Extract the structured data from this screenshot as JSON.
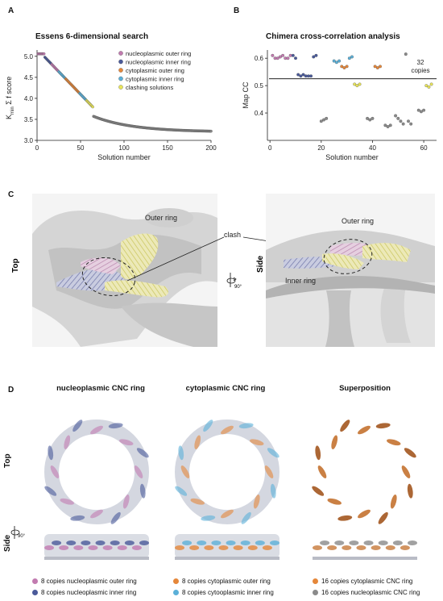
{
  "panel_a": {
    "letter": "A",
    "chart_data": {
      "type": "scatter",
      "title": "Essens 6-dimensional search",
      "xlabel": "Solution number",
      "ylabel_main": "K",
      "ylabel_sub": "min",
      "ylabel_rest": " Σ f score",
      "xlim": [
        0,
        200
      ],
      "ylim": [
        3.0,
        5.15
      ],
      "xticks": [
        0,
        50,
        100,
        150,
        200
      ],
      "yticks": [
        3.0,
        3.5,
        4.0,
        4.5,
        5.0
      ],
      "legend": [
        {
          "name": "nucleoplasmic outer ring",
          "color": "#c27bb0"
        },
        {
          "name": "nucleoplasmic inner ring",
          "color": "#4a5a9a"
        },
        {
          "name": "cytoplasmic outer ring",
          "color": "#e5873a"
        },
        {
          "name": "cytoplasmic inner ring",
          "color": "#5bb0d8"
        },
        {
          "name": "clashing solutions",
          "color": "#e8e45a"
        }
      ],
      "colors": {
        "other": "#8a8a8a"
      }
    }
  },
  "panel_b": {
    "letter": "B",
    "chart_data": {
      "type": "scatter",
      "title": "Chimera cross-correlation analysis",
      "xlabel": "Solution number",
      "ylabel": "Map CC",
      "xlim": [
        -1,
        65
      ],
      "ylim": [
        0.3,
        0.63
      ],
      "xticks": [
        0,
        20,
        40,
        60
      ],
      "yticks": [
        0.4,
        0.5,
        0.6
      ],
      "threshold": 0.525,
      "annotation_line1": "32",
      "annotation_line2": "copies",
      "points": [
        {
          "x": 1,
          "y": 0.61,
          "c": "#c27bb0"
        },
        {
          "x": 2,
          "y": 0.6,
          "c": "#c27bb0"
        },
        {
          "x": 3,
          "y": 0.6,
          "c": "#c27bb0"
        },
        {
          "x": 4,
          "y": 0.605,
          "c": "#c27bb0"
        },
        {
          "x": 5,
          "y": 0.61,
          "c": "#c27bb0"
        },
        {
          "x": 6,
          "y": 0.6,
          "c": "#c27bb0"
        },
        {
          "x": 7,
          "y": 0.6,
          "c": "#c27bb0"
        },
        {
          "x": 8,
          "y": 0.61,
          "c": "#c27bb0"
        },
        {
          "x": 9,
          "y": 0.61,
          "c": "#4a5a9a"
        },
        {
          "x": 10,
          "y": 0.6,
          "c": "#4a5a9a"
        },
        {
          "x": 11,
          "y": 0.54,
          "c": "#4a5a9a"
        },
        {
          "x": 12,
          "y": 0.535,
          "c": "#4a5a9a"
        },
        {
          "x": 13,
          "y": 0.54,
          "c": "#4a5a9a"
        },
        {
          "x": 14,
          "y": 0.535,
          "c": "#4a5a9a"
        },
        {
          "x": 15,
          "y": 0.535,
          "c": "#4a5a9a"
        },
        {
          "x": 16,
          "y": 0.535,
          "c": "#4a5a9a"
        },
        {
          "x": 17,
          "y": 0.605,
          "c": "#4a5a9a"
        },
        {
          "x": 18,
          "y": 0.61,
          "c": "#4a5a9a"
        },
        {
          "x": 20,
          "y": 0.37,
          "c": "#8a8a8a"
        },
        {
          "x": 21,
          "y": 0.375,
          "c": "#8a8a8a"
        },
        {
          "x": 22,
          "y": 0.38,
          "c": "#8a8a8a"
        },
        {
          "x": 25,
          "y": 0.59,
          "c": "#5bb0d8"
        },
        {
          "x": 26,
          "y": 0.585,
          "c": "#5bb0d8"
        },
        {
          "x": 27,
          "y": 0.59,
          "c": "#5bb0d8"
        },
        {
          "x": 28,
          "y": 0.57,
          "c": "#e5873a"
        },
        {
          "x": 29,
          "y": 0.565,
          "c": "#e5873a"
        },
        {
          "x": 30,
          "y": 0.57,
          "c": "#e5873a"
        },
        {
          "x": 31,
          "y": 0.6,
          "c": "#5bb0d8"
        },
        {
          "x": 32,
          "y": 0.605,
          "c": "#5bb0d8"
        },
        {
          "x": 33,
          "y": 0.505,
          "c": "#e8e45a"
        },
        {
          "x": 34,
          "y": 0.5,
          "c": "#e8e45a"
        },
        {
          "x": 35,
          "y": 0.505,
          "c": "#e8e45a"
        },
        {
          "x": 38,
          "y": 0.38,
          "c": "#8a8a8a"
        },
        {
          "x": 39,
          "y": 0.375,
          "c": "#8a8a8a"
        },
        {
          "x": 40,
          "y": 0.38,
          "c": "#8a8a8a"
        },
        {
          "x": 41,
          "y": 0.57,
          "c": "#e5873a"
        },
        {
          "x": 42,
          "y": 0.565,
          "c": "#e5873a"
        },
        {
          "x": 43,
          "y": 0.57,
          "c": "#e5873a"
        },
        {
          "x": 45,
          "y": 0.355,
          "c": "#8a8a8a"
        },
        {
          "x": 46,
          "y": 0.35,
          "c": "#8a8a8a"
        },
        {
          "x": 47,
          "y": 0.355,
          "c": "#8a8a8a"
        },
        {
          "x": 49,
          "y": 0.39,
          "c": "#8a8a8a"
        },
        {
          "x": 50,
          "y": 0.38,
          "c": "#8a8a8a"
        },
        {
          "x": 51,
          "y": 0.37,
          "c": "#8a8a8a"
        },
        {
          "x": 52,
          "y": 0.36,
          "c": "#8a8a8a"
        },
        {
          "x": 53,
          "y": 0.615,
          "c": "#8a8a8a"
        },
        {
          "x": 54,
          "y": 0.37,
          "c": "#8a8a8a"
        },
        {
          "x": 55,
          "y": 0.36,
          "c": "#8a8a8a"
        },
        {
          "x": 58,
          "y": 0.41,
          "c": "#8a8a8a"
        },
        {
          "x": 59,
          "y": 0.405,
          "c": "#8a8a8a"
        },
        {
          "x": 60,
          "y": 0.41,
          "c": "#8a8a8a"
        },
        {
          "x": 61,
          "y": 0.5,
          "c": "#e8e45a"
        },
        {
          "x": 62,
          "y": 0.495,
          "c": "#e8e45a"
        },
        {
          "x": 63,
          "y": 0.505,
          "c": "#e8e45a"
        }
      ]
    }
  },
  "panel_c": {
    "letter": "C",
    "top_view_label": "Top",
    "side_view_label": "Side",
    "outer_ring_left": "Outer ring",
    "outer_ring_right": "Outer ring",
    "inner_ring": "Inner ring",
    "clash": "clash",
    "rotation": "90°"
  },
  "panel_d": {
    "letter": "D",
    "col1_title": "nucleoplasmic CNC ring",
    "col2_title": "cytoplasmic CNC ring",
    "col3_title": "Superposition",
    "top_label": "Top",
    "side_label": "Side",
    "rotation": "90°",
    "legend": [
      {
        "text": "8 copies nucleoplasmic outer ring",
        "color": "#c27bb0"
      },
      {
        "text": "8 copies nucleoplasmic inner ring",
        "color": "#4a5a9a"
      },
      {
        "text": "8 copies cytoplasmic outer ring",
        "color": "#e5873a"
      },
      {
        "text": "8 copies cytooplasmic inner ring",
        "color": "#5bb0d8"
      },
      {
        "text": "16 copies cytoplasmic CNC ring",
        "color": "#e5873a"
      },
      {
        "text": "16 copies nucleoplasmic CNC ring",
        "color": "#8a8a8a"
      }
    ]
  }
}
